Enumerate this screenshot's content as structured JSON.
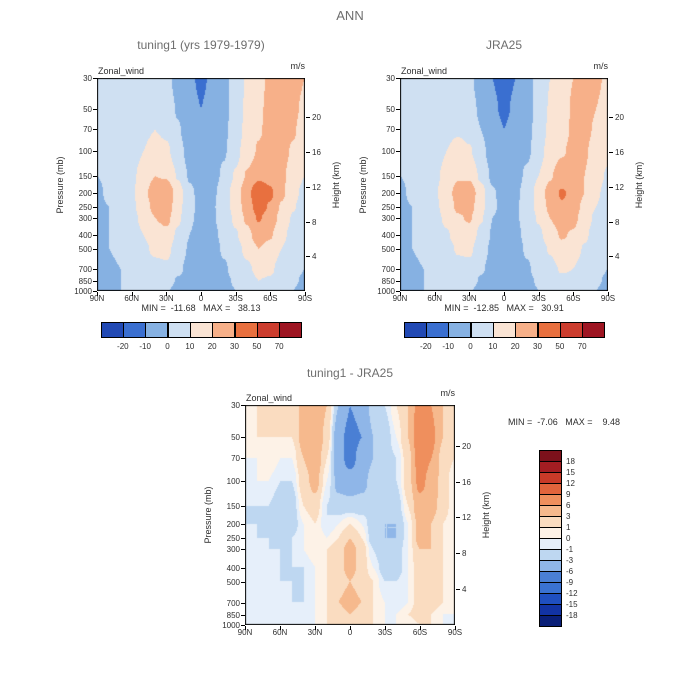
{
  "main_title": "ANN",
  "shared": {
    "field_label": "Zonal_wind",
    "units_label": "m/s",
    "pressure_axis_label": "Pressure (mb)",
    "height_axis_label": "Height (km)"
  },
  "panels": [
    {
      "title": "tuning1 (yrs 1979-1979)",
      "minmax": "MIN =  -11.68   MAX =   38.13"
    },
    {
      "title": "JRA25",
      "minmax": "MIN =  -12.85   MAX =   30.91"
    },
    {
      "title": "tuning1 - JRA25",
      "minmax": "MIN =  -7.06   MAX =    9.48"
    }
  ],
  "chart_data": [
    {
      "type": "heatmap",
      "title": "tuning1 (yrs 1979-1979)",
      "field": "Zonal_wind",
      "units": "m/s",
      "min": -11.68,
      "max": 38.13,
      "x_axis": {
        "tick_labels": [
          "90N",
          "60N",
          "30N",
          "0",
          "30S",
          "60S",
          "90S"
        ],
        "lats_deg": [
          90,
          80,
          70,
          60,
          50,
          40,
          30,
          20,
          10,
          0,
          -10,
          -20,
          -30,
          -40,
          -50,
          -60,
          -70,
          -80,
          -90
        ]
      },
      "y_axis": {
        "label": "Pressure (mb)",
        "log_scale": true,
        "ticks_mb": [
          30,
          50,
          70,
          100,
          150,
          200,
          250,
          300,
          400,
          500,
          700,
          850,
          1000
        ]
      },
      "y2_axis": {
        "label": "Height (km)",
        "ticks_km": [
          20,
          16,
          12,
          8,
          4
        ]
      },
      "contour_levels": [
        -20,
        -10,
        0,
        10,
        20,
        30,
        50,
        70
      ],
      "fill_colors": [
        "#2149b4",
        "#3a6fd0",
        "#86b1e2",
        "#cfe0f2",
        "#fae4d4",
        "#f7b089",
        "#e8703f",
        "#cc3d2e",
        "#9e1522"
      ],
      "colorbar": {
        "orientation": "horizontal",
        "tick_labels": [
          "-20",
          "-10",
          "0",
          "10",
          "20",
          "30",
          "50",
          "70"
        ]
      },
      "values_mps": [
        [
          2,
          3,
          4,
          5,
          6,
          6,
          3,
          -4,
          -9,
          -11,
          -9,
          -3,
          4,
          11,
          17,
          22,
          26,
          24,
          20
        ],
        [
          2,
          3,
          4,
          5,
          7,
          8,
          5,
          -1,
          -8,
          -10,
          -8,
          -3,
          4,
          12,
          18,
          23,
          25,
          22,
          18
        ],
        [
          1,
          2,
          3,
          5,
          8,
          10,
          8,
          1,
          -6,
          -9,
          -7,
          -2,
          5,
          13,
          19,
          23,
          24,
          21,
          16
        ],
        [
          0,
          1,
          3,
          6,
          10,
          14,
          12,
          4,
          -4,
          -7,
          -6,
          -1,
          7,
          15,
          21,
          24,
          23,
          19,
          13
        ],
        [
          0,
          1,
          3,
          8,
          14,
          20,
          19,
          9,
          -1,
          -5,
          -4,
          2,
          11,
          21,
          28,
          27,
          22,
          16,
          10
        ],
        [
          -1,
          1,
          4,
          9,
          17,
          26,
          29,
          15,
          2,
          -3,
          -2,
          5,
          15,
          27,
          38,
          32,
          22,
          13,
          7
        ],
        [
          -1,
          0,
          3,
          8,
          15,
          23,
          26,
          14,
          2,
          -2,
          -1,
          5,
          14,
          25,
          35,
          29,
          19,
          11,
          5
        ],
        [
          -1,
          0,
          2,
          7,
          13,
          20,
          23,
          12,
          1,
          -2,
          -1,
          4,
          12,
          22,
          31,
          26,
          17,
          9,
          3
        ],
        [
          -1,
          0,
          2,
          5,
          10,
          15,
          17,
          8,
          0,
          -3,
          -2,
          2,
          9,
          17,
          25,
          21,
          13,
          6,
          2
        ],
        [
          -1,
          0,
          1,
          4,
          8,
          12,
          13,
          5,
          -1,
          -3,
          -3,
          1,
          6,
          13,
          20,
          17,
          10,
          4,
          1
        ],
        [
          -2,
          -1,
          0,
          3,
          5,
          7,
          8,
          2,
          -3,
          -4,
          -4,
          -1,
          3,
          8,
          13,
          12,
          6,
          2,
          0
        ],
        [
          -2,
          -1,
          0,
          2,
          4,
          5,
          4,
          -1,
          -4,
          -5,
          -5,
          -2,
          1,
          5,
          10,
          9,
          4,
          1,
          -1
        ],
        [
          -2,
          -1,
          0,
          1,
          2,
          2,
          1,
          -3,
          -5,
          -5,
          -5,
          -3,
          0,
          3,
          7,
          6,
          2,
          0,
          -2
        ]
      ]
    },
    {
      "type": "heatmap",
      "title": "JRA25",
      "field": "Zonal_wind",
      "units": "m/s",
      "min": -12.85,
      "max": 30.91,
      "x_axis": {
        "tick_labels": [
          "90N",
          "60N",
          "30N",
          "0",
          "30S",
          "60S",
          "90S"
        ],
        "lats_deg": [
          90,
          80,
          70,
          60,
          50,
          40,
          30,
          20,
          10,
          0,
          -10,
          -20,
          -30,
          -40,
          -50,
          -60,
          -70,
          -80,
          -90
        ]
      },
      "y_axis": {
        "label": "Pressure (mb)",
        "log_scale": true,
        "ticks_mb": [
          30,
          50,
          70,
          100,
          150,
          200,
          250,
          300,
          400,
          500,
          700,
          850,
          1000
        ]
      },
      "y2_axis": {
        "label": "Height (km)",
        "ticks_km": [
          20,
          16,
          12,
          8,
          4
        ]
      },
      "contour_levels": [
        -20,
        -10,
        0,
        10,
        20,
        30,
        50,
        70
      ],
      "fill_colors": [
        "#2149b4",
        "#3a6fd0",
        "#86b1e2",
        "#cfe0f2",
        "#fae4d4",
        "#f7b089",
        "#e8703f",
        "#cc3d2e",
        "#9e1522"
      ],
      "colorbar": {
        "orientation": "horizontal",
        "tick_labels": [
          "-20",
          "-10",
          "0",
          "10",
          "20",
          "30",
          "50",
          "70"
        ]
      },
      "values_mps": [
        [
          2,
          3,
          4,
          5,
          6,
          5,
          2,
          -5,
          -10,
          -12,
          -10,
          -4,
          3,
          10,
          15,
          20,
          24,
          22,
          18
        ],
        [
          2,
          3,
          4,
          5,
          7,
          7,
          4,
          -2,
          -9,
          -11,
          -9,
          -4,
          3,
          11,
          16,
          21,
          23,
          20,
          16
        ],
        [
          1,
          2,
          3,
          5,
          8,
          9,
          7,
          0,
          -7,
          -10,
          -8,
          -3,
          4,
          12,
          17,
          21,
          22,
          19,
          14
        ],
        [
          0,
          1,
          3,
          6,
          10,
          13,
          11,
          3,
          -5,
          -8,
          -6,
          -2,
          6,
          14,
          19,
          22,
          21,
          17,
          12
        ],
        [
          0,
          1,
          3,
          8,
          13,
          19,
          18,
          8,
          -2,
          -5,
          -4,
          2,
          10,
          19,
          25,
          24,
          20,
          14,
          9
        ],
        [
          -1,
          1,
          4,
          9,
          16,
          24,
          27,
          14,
          1,
          -3,
          -2,
          4,
          14,
          24,
          31,
          28,
          20,
          12,
          6
        ],
        [
          -1,
          0,
          3,
          8,
          14,
          22,
          24,
          13,
          1,
          -2,
          -1,
          4,
          13,
          22,
          29,
          26,
          17,
          10,
          4
        ],
        [
          -1,
          0,
          2,
          7,
          12,
          19,
          21,
          11,
          0,
          -2,
          -1,
          3,
          11,
          20,
          26,
          23,
          15,
          8,
          3
        ],
        [
          -1,
          0,
          2,
          5,
          9,
          14,
          16,
          7,
          -1,
          -3,
          -2,
          2,
          8,
          15,
          21,
          19,
          12,
          5,
          2
        ],
        [
          -1,
          0,
          1,
          4,
          7,
          11,
          12,
          4,
          -2,
          -3,
          -3,
          1,
          5,
          11,
          17,
          15,
          9,
          4,
          1
        ],
        [
          -2,
          -1,
          0,
          3,
          5,
          7,
          7,
          1,
          -3,
          -5,
          -4,
          -1,
          3,
          7,
          11,
          10,
          6,
          2,
          0
        ],
        [
          -2,
          -1,
          0,
          2,
          4,
          5,
          4,
          -1,
          -5,
          -6,
          -5,
          -2,
          1,
          4,
          8,
          8,
          4,
          1,
          -1
        ],
        [
          -2,
          -1,
          0,
          1,
          2,
          2,
          1,
          -3,
          -5,
          -6,
          -5,
          -3,
          0,
          2,
          6,
          5,
          2,
          0,
          -2
        ]
      ]
    },
    {
      "type": "heatmap",
      "title": "tuning1 - JRA25",
      "field": "Zonal_wind",
      "units": "m/s",
      "min": -7.06,
      "max": 9.48,
      "x_axis": {
        "tick_labels": [
          "90N",
          "60N",
          "30N",
          "0",
          "30S",
          "60S",
          "90S"
        ],
        "lats_deg": [
          90,
          80,
          70,
          60,
          50,
          40,
          30,
          20,
          10,
          0,
          -10,
          -20,
          -30,
          -40,
          -50,
          -60,
          -70,
          -80,
          -90
        ]
      },
      "y_axis": {
        "label": "Pressure (mb)",
        "log_scale": true,
        "ticks_mb": [
          30,
          50,
          70,
          100,
          150,
          200,
          250,
          300,
          400,
          500,
          700,
          850,
          1000
        ]
      },
      "y2_axis": {
        "label": "Height (km)",
        "ticks_km": [
          20,
          16,
          12,
          8,
          4
        ]
      },
      "contour_levels": [
        -18,
        -15,
        -12,
        -9,
        -6,
        -3,
        -1,
        0,
        1,
        3,
        6,
        9,
        12,
        15,
        18
      ],
      "fill_colors": [
        "#0a1f78",
        "#1233a4",
        "#1f4fc0",
        "#3a72d2",
        "#4a7fd4",
        "#8fb6e8",
        "#bed7f1",
        "#e6effa",
        "#fdf2e7",
        "#fadcc0",
        "#f6b98d",
        "#ef8f5d",
        "#e2643c",
        "#c93a28",
        "#a31d22",
        "#7c111b"
      ],
      "colorbar": {
        "orientation": "vertical",
        "tick_labels": [
          "18",
          "15",
          "12",
          "9",
          "6",
          "3",
          "1",
          "0",
          "-1",
          "-3",
          "-6",
          "-9",
          "-12",
          "-15",
          "-18"
        ]
      },
      "values_mps": [
        [
          1,
          1,
          2,
          2,
          1,
          4,
          6,
          3,
          -3,
          -6,
          -5,
          -2,
          -1,
          1,
          3,
          8,
          6,
          3,
          1
        ],
        [
          0,
          1,
          1,
          1,
          1,
          4,
          6,
          2,
          -5,
          -7,
          -6,
          -3,
          -2,
          0,
          3,
          9,
          7,
          3,
          1
        ],
        [
          0,
          0,
          1,
          0,
          0,
          3,
          5,
          1,
          -5,
          -7,
          -5,
          -3,
          -2,
          -1,
          2,
          8,
          6,
          2,
          1
        ],
        [
          -1,
          0,
          0,
          -1,
          -1,
          2,
          4,
          0,
          -4,
          -5,
          -4,
          -2,
          -2,
          -1,
          2,
          7,
          5,
          2,
          0
        ],
        [
          -1,
          -1,
          -1,
          -2,
          -2,
          1,
          2,
          -1,
          -2,
          -2,
          -2,
          -2,
          -2,
          -2,
          1,
          5,
          4,
          2,
          0
        ],
        [
          -1,
          -1,
          -1,
          -2,
          -2,
          0,
          1,
          -1,
          0,
          1,
          0,
          -2,
          -3,
          -3,
          0,
          4,
          3,
          1,
          0
        ],
        [
          0,
          -1,
          -1,
          -2,
          -1,
          0,
          1,
          0,
          1,
          3,
          1,
          -2,
          -3,
          -3,
          0,
          4,
          3,
          1,
          0
        ],
        [
          0,
          0,
          -1,
          -1,
          -1,
          0,
          1,
          1,
          2,
          4,
          2,
          -1,
          -3,
          -2,
          0,
          3,
          3,
          1,
          0
        ],
        [
          0,
          0,
          0,
          -1,
          -1,
          -1,
          0,
          1,
          2,
          4,
          2,
          0,
          -2,
          -2,
          0,
          2,
          2,
          1,
          0
        ],
        [
          0,
          0,
          0,
          -1,
          -1,
          -1,
          0,
          1,
          2,
          3,
          2,
          1,
          -1,
          -1,
          0,
          2,
          2,
          1,
          0
        ],
        [
          0,
          0,
          0,
          0,
          -1,
          -1,
          0,
          1,
          3,
          4,
          3,
          1,
          0,
          -1,
          0,
          2,
          2,
          1,
          0
        ],
        [
          0,
          0,
          0,
          0,
          0,
          -1,
          0,
          1,
          2,
          3,
          2,
          1,
          0,
          0,
          1,
          2,
          1,
          0,
          0
        ],
        [
          0,
          0,
          0,
          0,
          0,
          0,
          0,
          1,
          1,
          2,
          2,
          1,
          0,
          0,
          0,
          1,
          1,
          0,
          0
        ]
      ]
    }
  ]
}
